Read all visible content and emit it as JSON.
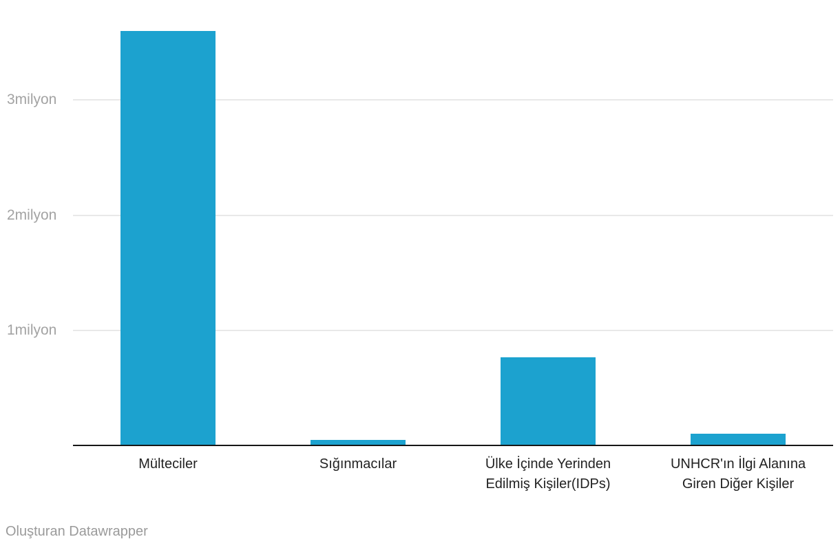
{
  "chart_data": {
    "type": "bar",
    "categories": [
      "Mülteciler",
      "Sığınmacılar",
      "Ülke İçinde Yerinden Edilmiş Kişiler(IDPs)",
      "UNHCR'ın İlgi Alanına Giren Diğer Kişiler"
    ],
    "category_label_lines": [
      [
        "Mülteciler"
      ],
      [
        "Sığınmacılar"
      ],
      [
        "Ülke İçinde Yerinden",
        "Edilmiş Kişiler(IDPs)"
      ],
      [
        "UNHCR'ın İlgi Alanına",
        "Giren Diğer Kişiler"
      ]
    ],
    "values": [
      3600000,
      45000,
      765000,
      100000
    ],
    "title": "",
    "xlabel": "",
    "ylabel": "",
    "ylim": [
      0,
      3600000
    ],
    "yticks": [
      {
        "value": 1000000,
        "label": "1milyon"
      },
      {
        "value": 2000000,
        "label": "2milyon"
      },
      {
        "value": 3000000,
        "label": "3milyon"
      }
    ],
    "grid": true,
    "legend": "none",
    "bar_color": "#1ca2cf"
  },
  "colors": {
    "bar": "#1ca2cf",
    "gridline": "#e8e8e8",
    "axis_line": "#161616",
    "ytick_text": "#a3a3a3",
    "xtick_text": "#222222",
    "footer_text": "#9a9a9a",
    "background": "#ffffff"
  },
  "footer": {
    "credit": "Oluşturan Datawrapper"
  }
}
